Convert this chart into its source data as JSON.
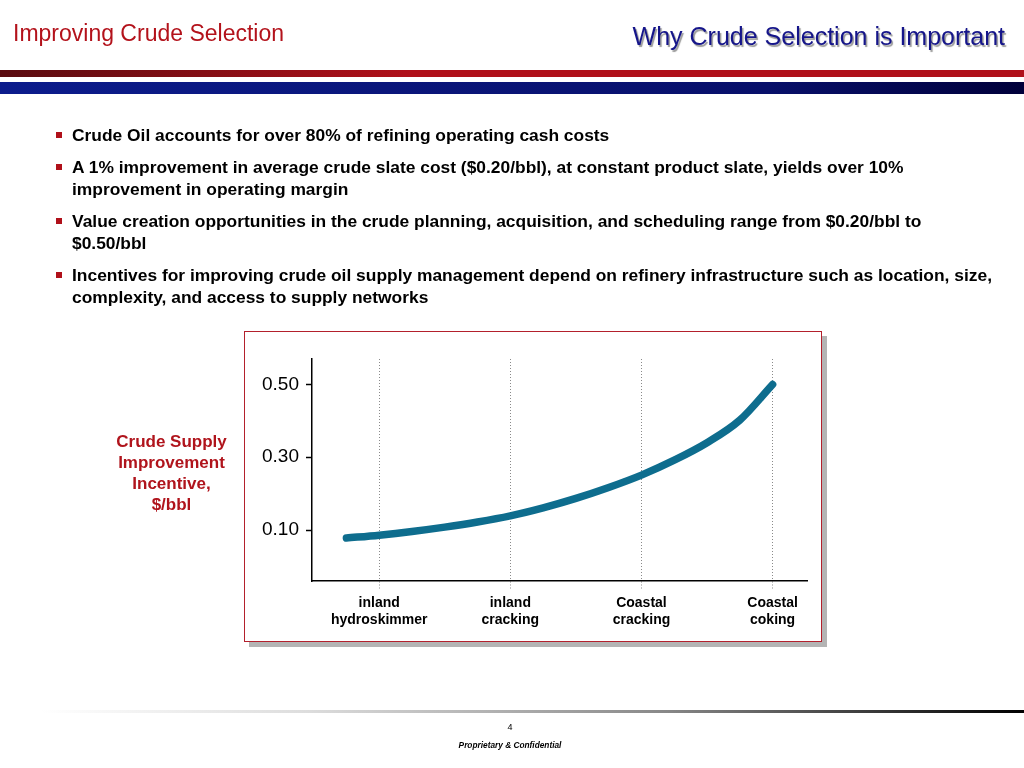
{
  "chart_data": {
    "type": "line",
    "title": "Why Crude Selection is Important",
    "subtitle": "Improving Crude Selection",
    "ylabel": "Crude Supply Improvement Incentive, $/bbl",
    "annotations": [
      "Crude Oil accounts for over 80% of refining operating cash costs",
      "A 1% improvement in average crude slate cost ($0.20/bbl), at constant product slate, yields over 10% improvement in operating margin",
      "Value creation opportunities in the crude planning, acquisition, and scheduling range from $0.20/bbl to $0.50/bbl",
      "Incentives for improving crude oil supply management depend on refinery infrastructure such as location, size, complexity, and access to supply networks",
      "4",
      "Proprietary & Confidential"
    ],
    "categories": [
      null,
      "inland hydroskimmer",
      null,
      null,
      null,
      "inland cracking",
      null,
      null,
      null,
      "Coastal cracking",
      null,
      null,
      null,
      "Coastal coking"
    ],
    "values": [
      0.078,
      0.086,
      0.096,
      0.108,
      0.122,
      0.139,
      0.161,
      0.187,
      0.217,
      0.251,
      0.292,
      0.34,
      0.402,
      0.5
    ],
    "color": "#0e6d8e",
    "ylim": [
      -0.04,
      0.57
    ],
    "yticks": [
      {
        "value": 0.1,
        "label": "0.10"
      },
      {
        "value": 0.3,
        "label": "0.30"
      },
      {
        "value": 0.5,
        "label": "0.50"
      }
    ],
    "grid": "x",
    "marker": "none",
    "line_style": "solid"
  }
}
